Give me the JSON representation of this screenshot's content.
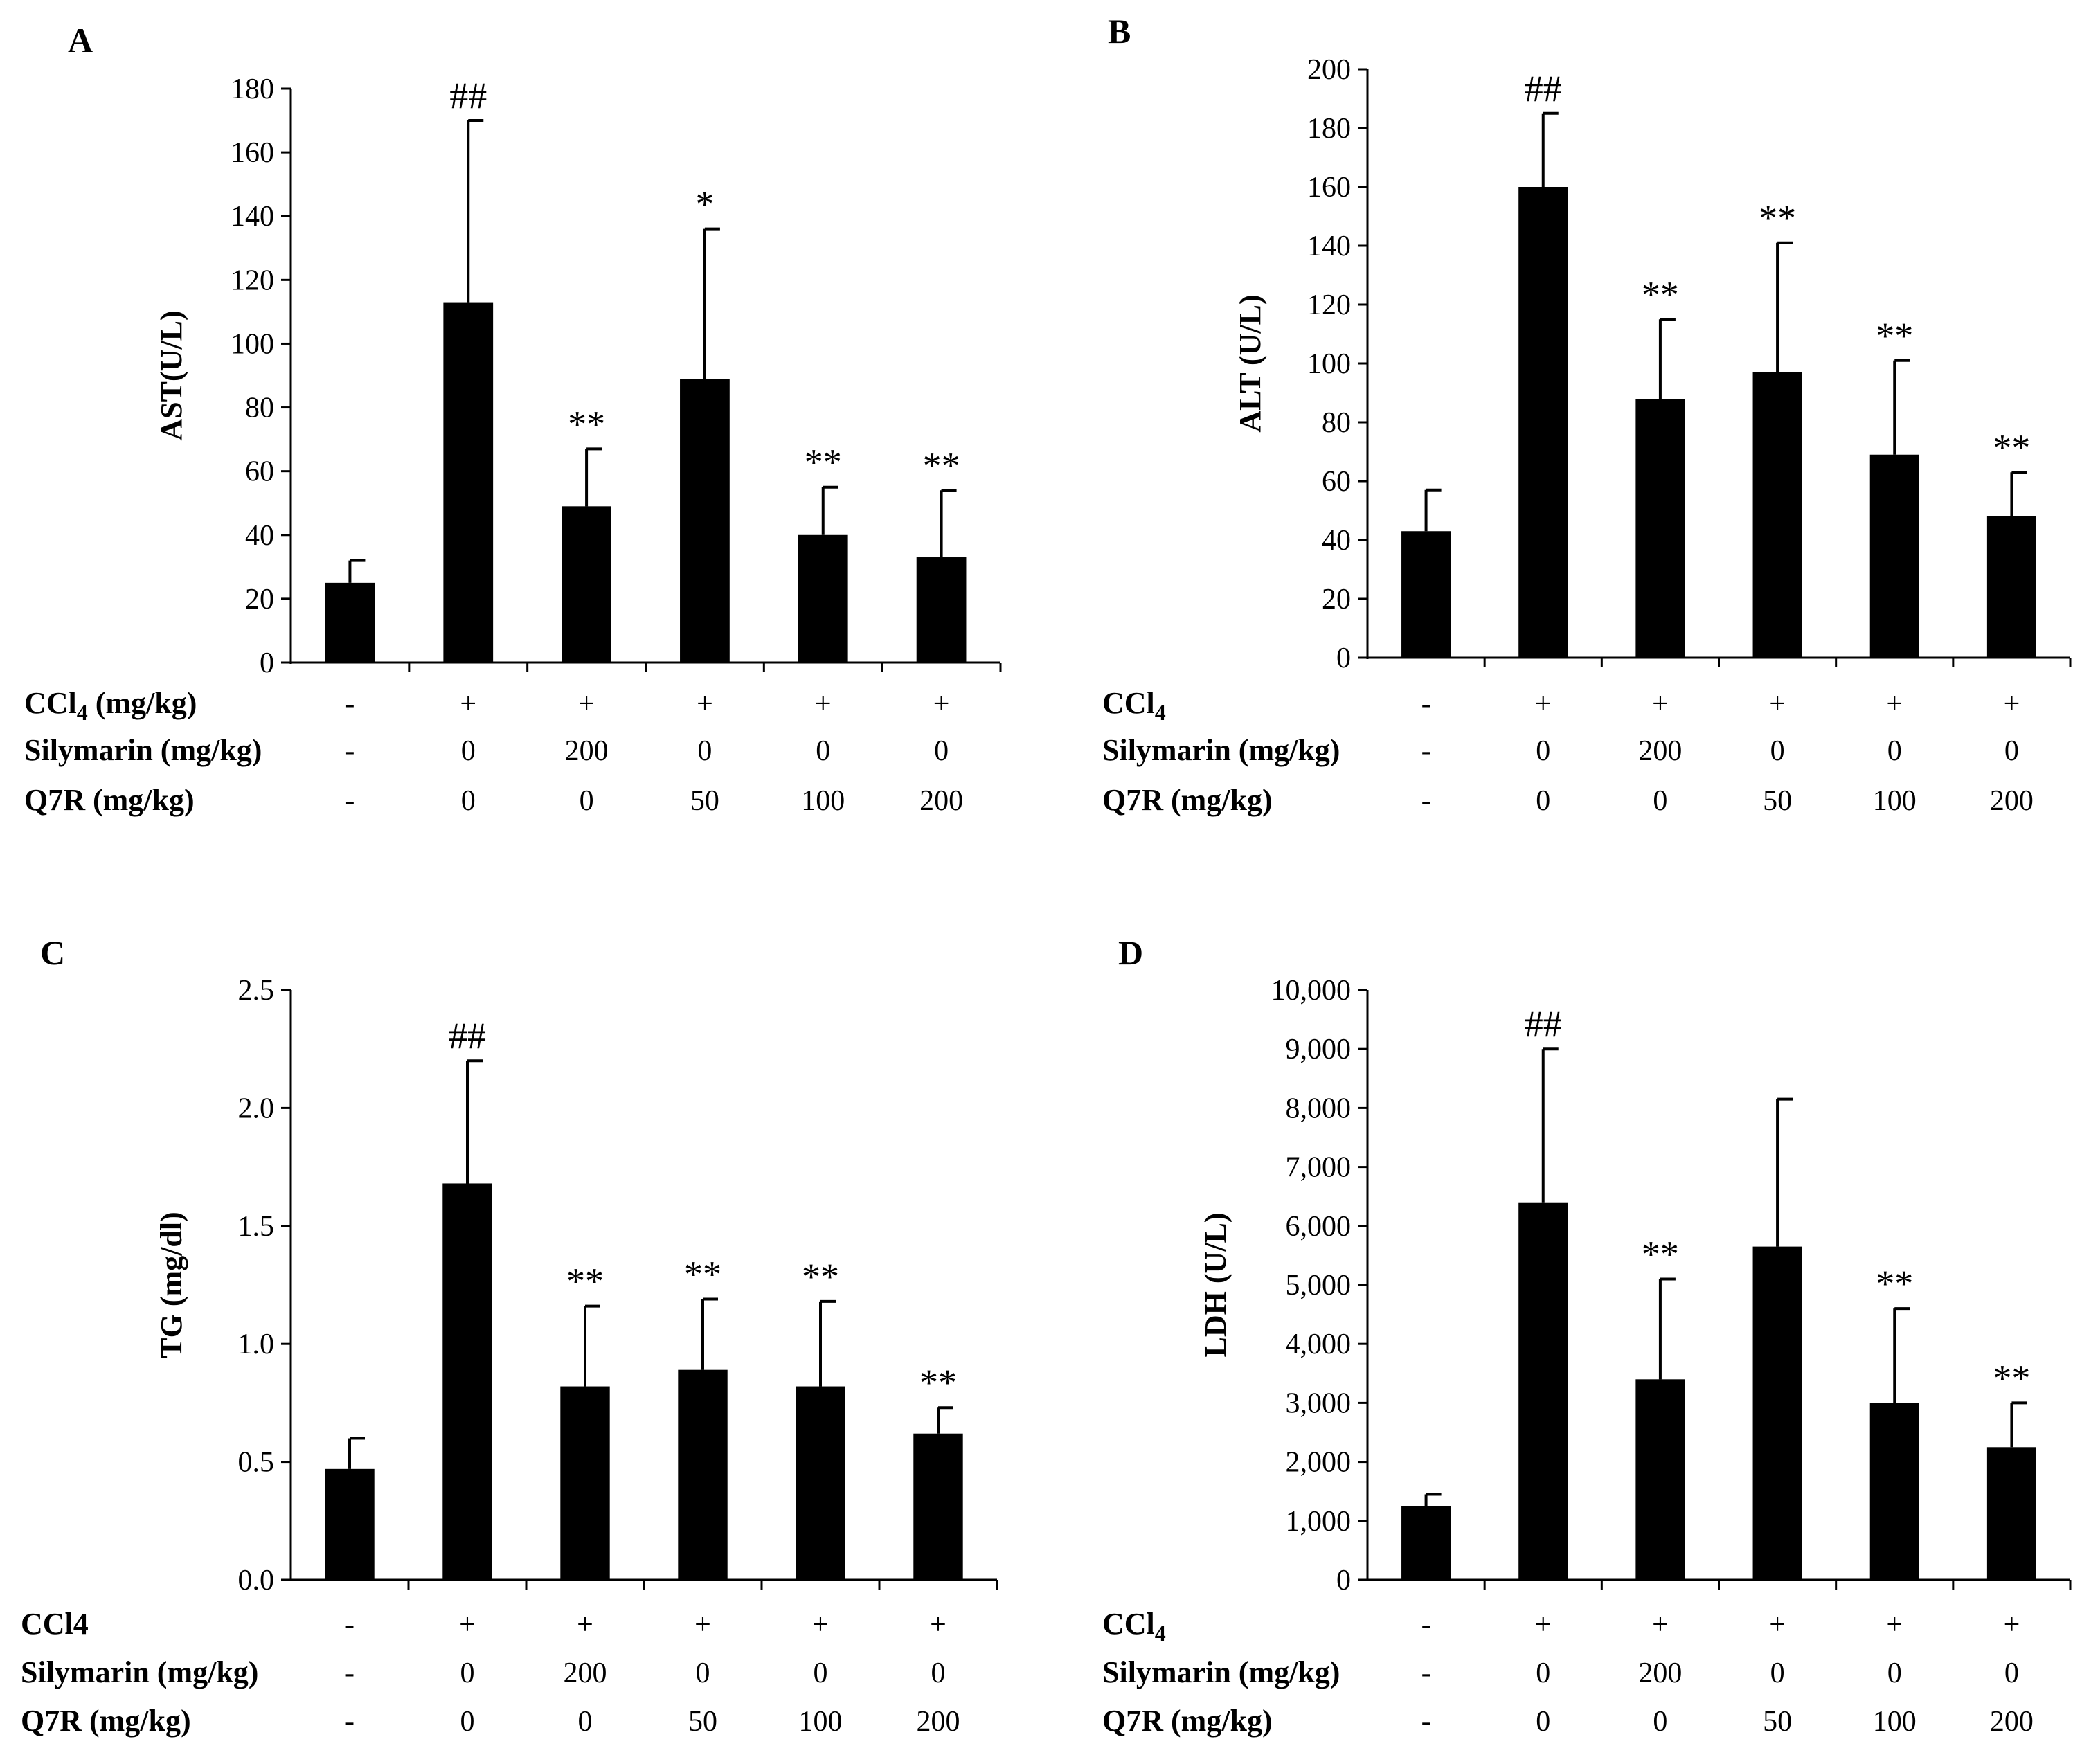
{
  "chart_data": [
    {
      "panel": "A",
      "type": "bar",
      "ylabel": "AST(U/L)",
      "ylim": [
        0,
        180
      ],
      "yticks": [
        "0",
        "20",
        "40",
        "60",
        "80",
        "100",
        "120",
        "140",
        "160",
        "180"
      ],
      "values": [
        25,
        113,
        49,
        89,
        40,
        33
      ],
      "errors": [
        7,
        57,
        18,
        47,
        15,
        21
      ],
      "significance": [
        "",
        "##",
        "**",
        "*",
        "**",
        "**"
      ],
      "rows": [
        {
          "label": "CCl",
          "sub": "4",
          "suffix": " (mg/kg)",
          "values": [
            "-",
            "+",
            "+",
            "+",
            "+",
            "+"
          ]
        },
        {
          "label": "Silymarin (mg/kg)",
          "sub": "",
          "suffix": "",
          "values": [
            "-",
            "0",
            "200",
            "0",
            "0",
            "0"
          ]
        },
        {
          "label": "Q7R (mg/kg)",
          "sub": "",
          "suffix": "",
          "values": [
            "-",
            "0",
            "0",
            "50",
            "100",
            "200"
          ]
        }
      ]
    },
    {
      "panel": "B",
      "type": "bar",
      "ylabel": "ALT (U/L)",
      "ylim": [
        0,
        200
      ],
      "yticks": [
        "0",
        "20",
        "40",
        "60",
        "80",
        "100",
        "120",
        "140",
        "160",
        "180",
        "200"
      ],
      "values": [
        43,
        160,
        88,
        97,
        69,
        48
      ],
      "errors": [
        14,
        25,
        27,
        44,
        32,
        15
      ],
      "significance": [
        "",
        "##",
        "**",
        "**",
        "**",
        "**"
      ],
      "rows": [
        {
          "label": "CCl",
          "sub": "4",
          "suffix": "",
          "values": [
            "-",
            "+",
            "+",
            "+",
            "+",
            "+"
          ]
        },
        {
          "label": "Silymarin (mg/kg)",
          "sub": "",
          "suffix": "",
          "values": [
            "-",
            "0",
            "200",
            "0",
            "0",
            "0"
          ]
        },
        {
          "label": "Q7R (mg/kg)",
          "sub": "",
          "suffix": "",
          "values": [
            "-",
            "0",
            "0",
            "50",
            "100",
            "200"
          ]
        }
      ]
    },
    {
      "panel": "C",
      "type": "bar",
      "ylabel": "TG (mg/dl)",
      "ylim": [
        0,
        2.5
      ],
      "yticks": [
        "0.0",
        "0.5",
        "1.0",
        "1.5",
        "2.0",
        "2.5"
      ],
      "values": [
        0.47,
        1.68,
        0.82,
        0.89,
        0.82,
        0.62
      ],
      "errors": [
        0.13,
        0.52,
        0.34,
        0.3,
        0.36,
        0.11
      ],
      "significance": [
        "",
        "##",
        "**",
        "**",
        "**",
        "**"
      ],
      "rows": [
        {
          "label": "CCl4",
          "sub": "",
          "suffix": "",
          "values": [
            "-",
            "+",
            "+",
            "+",
            "+",
            "+"
          ]
        },
        {
          "label": "Silymarin (mg/kg)",
          "sub": "",
          "suffix": "",
          "values": [
            "-",
            "0",
            "200",
            "0",
            "0",
            "0"
          ]
        },
        {
          "label": "Q7R (mg/kg)",
          "sub": "",
          "suffix": "",
          "values": [
            "-",
            "0",
            "0",
            "50",
            "100",
            "200"
          ]
        }
      ]
    },
    {
      "panel": "D",
      "type": "bar",
      "ylabel": "LDH (U/L)",
      "ylim": [
        0,
        10000
      ],
      "yticks": [
        "0",
        "1,000",
        "2,000",
        "3,000",
        "4,000",
        "5,000",
        "6,000",
        "7,000",
        "8,000",
        "9,000",
        "10,000"
      ],
      "values": [
        1250,
        6400,
        3400,
        5650,
        3000,
        2250
      ],
      "errors": [
        200,
        2600,
        1700,
        2500,
        1600,
        750
      ],
      "significance": [
        "",
        "##",
        "**",
        "",
        "**",
        "**"
      ],
      "rows": [
        {
          "label": "CCl",
          "sub": "4",
          "suffix": "",
          "values": [
            "-",
            "+",
            "+",
            "+",
            "+",
            "+"
          ]
        },
        {
          "label": "Silymarin (mg/kg)",
          "sub": "",
          "suffix": "",
          "values": [
            "-",
            "0",
            "200",
            "0",
            "0",
            "0"
          ]
        },
        {
          "label": "Q7R (mg/kg)",
          "sub": "",
          "suffix": "",
          "values": [
            "-",
            "0",
            "0",
            "50",
            "100",
            "200"
          ]
        }
      ]
    }
  ]
}
